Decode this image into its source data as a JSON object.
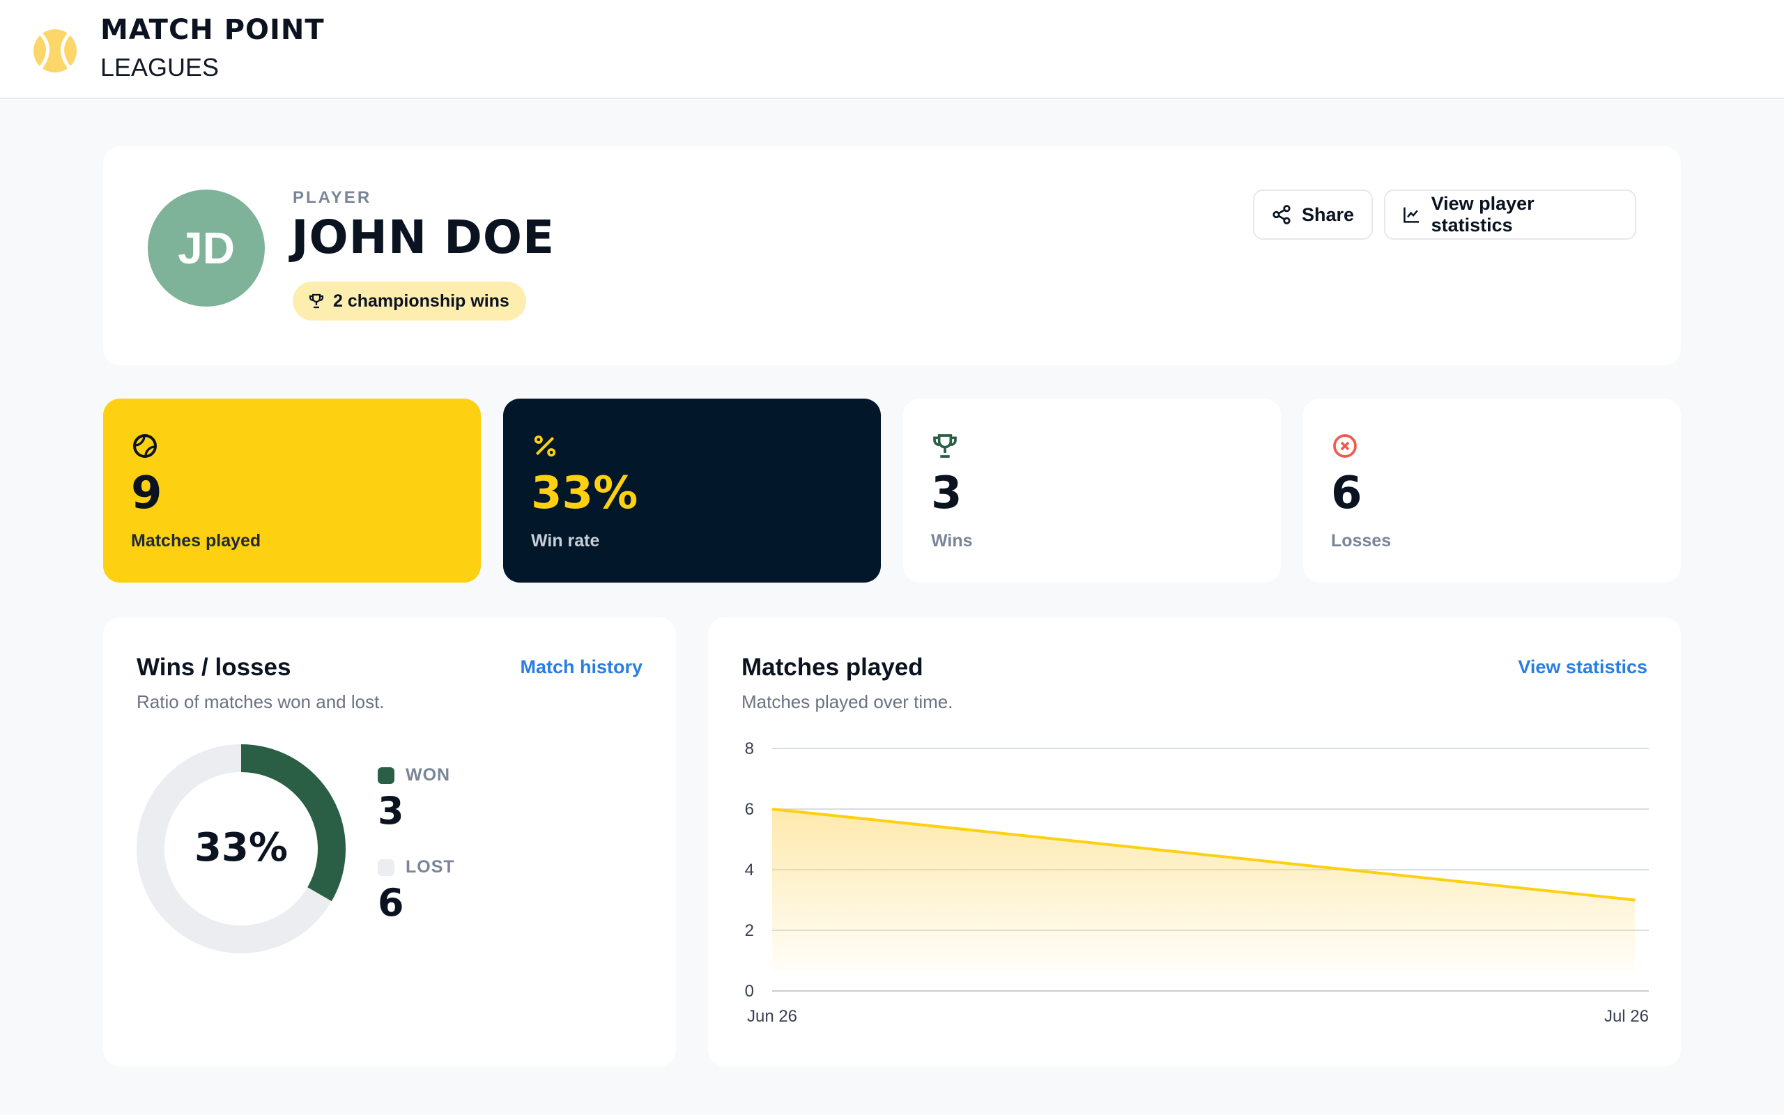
{
  "header": {
    "brand_name": "MATCH POINT",
    "brand_sub": "LEAGUES",
    "logo_icon": "tennis-ball-icon",
    "brand_color": "#fdd012"
  },
  "profile": {
    "avatar_initials": "JD",
    "avatar_color": "#7eb39a",
    "role_label": "PLAYER",
    "name": "JOHN DOE",
    "championship_badge": "2 championship wins",
    "share_label": "Share",
    "view_stats_label": "View player statistics"
  },
  "stats": [
    {
      "icon": "tennis-ball-icon",
      "value": "9",
      "label": "Matches played"
    },
    {
      "icon": "percent-icon",
      "value": "33%",
      "label": "Win rate"
    },
    {
      "icon": "trophy-icon",
      "value": "3",
      "label": "Wins"
    },
    {
      "icon": "x-circle-icon",
      "value": "6",
      "label": "Losses"
    }
  ],
  "wins_losses": {
    "title": "Wins / losses",
    "subtitle": "Ratio of matches won and lost.",
    "link": "Match history",
    "center_label": "33%",
    "won_label": "WON",
    "won_value": "3",
    "lost_label": "LOST",
    "lost_value": "6",
    "won_color": "#2a5e45",
    "lost_color": "#ebedf1"
  },
  "matches_played": {
    "title": "Matches played",
    "subtitle": "Matches played over time.",
    "link": "View statistics"
  },
  "chart_data": [
    {
      "type": "pie",
      "categories": [
        "WON",
        "LOST"
      ],
      "values": [
        3,
        6
      ]
    },
    {
      "type": "area",
      "x": [
        "Jun 26",
        "Jul 26"
      ],
      "series": [
        {
          "values": [
            6,
            3
          ]
        }
      ],
      "ylim": [
        0,
        8
      ],
      "yticks": [
        0,
        2,
        4,
        6,
        8
      ],
      "grid": true,
      "color": "#fdd012"
    }
  ]
}
